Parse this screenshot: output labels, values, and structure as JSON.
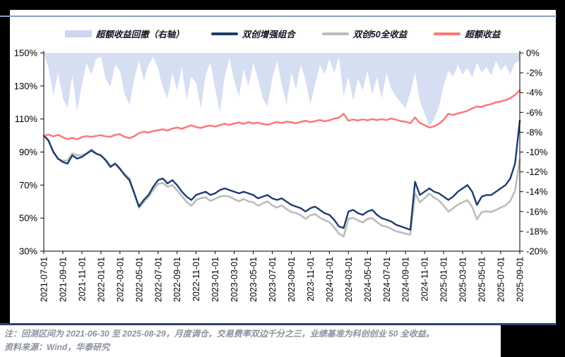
{
  "page": {
    "background": "#000000",
    "panel_bg": "#ffffff",
    "top_rule_color": "#8b9cc3",
    "separator_color": "#2c4170",
    "axis_color": "#000000"
  },
  "legend": [
    {
      "label": "超额收益回撤（右轴）",
      "type": "area",
      "color": "#ccd6ee"
    },
    {
      "label": "双创增强组合",
      "type": "line",
      "color": "#1c3d6e"
    },
    {
      "label": "双创50全收益",
      "type": "line",
      "color": "#bcbcbc"
    },
    {
      "label": "超额收益",
      "type": "line",
      "color": "#f97c7c"
    }
  ],
  "footer": {
    "note": "注：回测区间为 2021-06-30 至 2025-08-29，月度调仓，交易费率双边千分之三，业绩基准为科创创业 50 全收益。",
    "source": "资料来源：Wind，华泰研究"
  },
  "chart_data": {
    "type": "line",
    "x_range": [
      "2021-07-01",
      "2025-09-01"
    ],
    "point_interval": "half-month",
    "x_tick_labels": [
      "2021-07-01",
      "2021-09-01",
      "2021-11-01",
      "2022-01-01",
      "2022-03-01",
      "2022-05-01",
      "2022-07-01",
      "2022-09-01",
      "2022-11-01",
      "2023-01-01",
      "2023-03-01",
      "2023-05-01",
      "2023-07-01",
      "2023-09-01",
      "2023-11-01",
      "2024-01-01",
      "2024-03-01",
      "2024-05-01",
      "2024-07-01",
      "2024-09-01",
      "2024-11-01",
      "2025-01-01",
      "2025-03-01",
      "2025-05-01",
      "2025-07-01",
      "2025-09-01"
    ],
    "left_axis": {
      "min": 30,
      "max": 150,
      "tick_values": [
        150,
        130,
        110,
        90,
        70,
        50,
        30
      ],
      "tick_labels": [
        "150%",
        "130%",
        "110%",
        "90%",
        "70%",
        "50%",
        "30%"
      ]
    },
    "right_axis": {
      "min": -20,
      "max": 0,
      "tick_values": [
        0,
        -2,
        -4,
        -6,
        -8,
        -10,
        -12,
        -14,
        -16,
        -18,
        -20
      ],
      "tick_labels": [
        "0%",
        "-2%",
        "-4%",
        "-6%",
        "-8%",
        "-10%",
        "-12%",
        "-14%",
        "-16%",
        "-18%",
        "-20%"
      ]
    },
    "series": [
      {
        "id": "drawdown",
        "name": "超额收益回撤（右轴）",
        "axis": "right",
        "type": "area",
        "color": "#d6def2",
        "values": [
          0,
          -1.5,
          -4.3,
          -2.0,
          -4.6,
          -5.6,
          -2.3,
          -5.9,
          -3.2,
          -1.0,
          -2.2,
          -0.6,
          -0.4,
          -2.6,
          -3.4,
          -1.2,
          -1.8,
          -4.2,
          -5.2,
          -2.6,
          -0.8,
          -2.8,
          -1.2,
          -0.4,
          -1.6,
          -3.5,
          -4.6,
          -2.0,
          -3.8,
          -1.4,
          -4.8,
          -2.4,
          -3.0,
          -5.6,
          -2.2,
          -1.0,
          -3.6,
          -6.0,
          -2.4,
          -0.6,
          -2.8,
          -4.4,
          -1.6,
          -3.4,
          -1.0,
          -2.6,
          -4.6,
          -5.4,
          -2.6,
          -0.8,
          -3.2,
          -5.2,
          -2.0,
          -3.6,
          -1.2,
          -2.8,
          -5.2,
          -3.2,
          -1.2,
          -2.2,
          -0.6,
          -2.0,
          -0.4,
          -4.4,
          -2.4,
          -4.8,
          -2.6,
          -3.8,
          -1.8,
          -4.2,
          -2.4,
          -4.6,
          -2.0,
          -3.6,
          -4.4,
          -5.0,
          -5.6,
          -4.0,
          -2.0,
          -4.9,
          -6.1,
          -7.4,
          -6.7,
          -5.5,
          -3.3,
          -1.8,
          -2.4,
          -1.2,
          -2.2,
          -1.5,
          -2.5,
          -1.0,
          -2.0,
          -1.4,
          -2.3,
          -0.8,
          -1.8,
          -1.2,
          -2.2,
          -1.0,
          -0.8
        ]
      },
      {
        "id": "benchmark",
        "name": "双创50全收益",
        "axis": "left",
        "type": "line",
        "color": "#bcbcbc",
        "width": 2.6,
        "values": [
          100,
          96.5,
          90.5,
          85.7,
          84.8,
          84.9,
          89.2,
          88,
          87.9,
          89.4,
          91.7,
          89.2,
          87.8,
          85.4,
          81.7,
          82.7,
          79.4,
          76.6,
          74.2,
          65.3,
          56.2,
          59.6,
          62.9,
          67.2,
          70.7,
          71.3,
          68.9,
          70.1,
          66.8,
          63.4,
          59.9,
          57.5,
          60.9,
          62.1,
          62.6,
          60.4,
          61.7,
          63,
          63.5,
          63,
          61.5,
          60.2,
          61.6,
          60.1,
          59.6,
          57.5,
          58.9,
          60.1,
          57.7,
          56.4,
          57.7,
          55.4,
          53.7,
          53.1,
          51.7,
          49.6,
          51.8,
          52.4,
          50.3,
          48.8,
          47.6,
          44.5,
          40.6,
          38.9,
          49.6,
          50.1,
          48.6,
          47.4,
          49.5,
          50,
          47.6,
          45.5,
          44.8,
          43.5,
          42,
          41.4,
          40.6,
          40,
          64.9,
          59.5,
          62.1,
          64.9,
          62.5,
          60.7,
          57.5,
          53.9,
          56,
          58.2,
          59.6,
          60.9,
          56.7,
          49.3,
          53.7,
          54.1,
          53.8,
          55,
          56.4,
          57.7,
          60.4,
          66.6,
          85.6
        ]
      },
      {
        "id": "portfolio",
        "name": "双创增强组合",
        "axis": "left",
        "type": "line",
        "color": "#1c3d6e",
        "width": 2.4,
        "values": [
          100,
          97,
          90,
          86,
          84,
          83,
          88,
          86,
          87,
          89,
          91,
          89,
          88,
          85,
          81,
          83,
          80,
          76,
          73,
          65,
          57,
          61,
          64,
          69,
          73,
          74,
          71,
          73,
          70,
          66,
          63,
          61,
          64,
          65,
          66,
          64,
          65,
          67,
          68,
          67,
          66,
          65,
          66,
          65,
          64,
          62,
          63,
          64,
          62,
          61,
          62,
          60,
          58,
          57,
          56,
          54,
          56,
          57,
          55,
          53,
          52,
          49,
          45,
          44,
          54,
          55,
          53,
          52,
          54,
          55,
          52,
          50,
          49,
          48,
          46,
          45,
          44,
          43,
          72,
          64,
          66,
          68,
          66,
          65,
          63,
          61,
          63,
          66,
          68,
          70,
          66,
          58,
          63,
          64,
          64,
          66,
          68,
          70,
          74,
          83,
          109
        ]
      },
      {
        "id": "excess",
        "name": "超额收益",
        "axis": "left",
        "type": "line",
        "color": "#f97c7c",
        "width": 2.6,
        "values": [
          100,
          100.5,
          99.5,
          100.4,
          99,
          97.8,
          98.6,
          97.7,
          99,
          99.6,
          99.2,
          99.8,
          100.2,
          99.5,
          99.2,
          100.4,
          100.8,
          99.2,
          98.4,
          99.6,
          101.4,
          102.3,
          101.8,
          102.7,
          103.2,
          103.8,
          103,
          104.2,
          104.8,
          104.1,
          105.2,
          106.1,
          105.1,
          104.6,
          105.5,
          106,
          105.4,
          106.3,
          107.1,
          106.4,
          107.3,
          107.9,
          107.1,
          108.1,
          107.3,
          107.8,
          107,
          106.5,
          107.4,
          108.2,
          107.5,
          108.4,
          108,
          107.4,
          108.3,
          108.9,
          108.1,
          108.7,
          109.4,
          108.6,
          109.2,
          110.2,
          110.8,
          113.2,
          108.9,
          109.7,
          109.1,
          109.8,
          109.2,
          110,
          109.3,
          109.9,
          109.4,
          110.3,
          109.5,
          108.7,
          108.3,
          107.5,
          110.9,
          107.6,
          106.3,
          104.8,
          105.6,
          107,
          109.5,
          113.2,
          112.4,
          113.4,
          114.1,
          115,
          116.4,
          117.6,
          117.3,
          118.4,
          119,
          120.1,
          120.6,
          121.4,
          122.6,
          124.6,
          127.4
        ]
      }
    ]
  }
}
